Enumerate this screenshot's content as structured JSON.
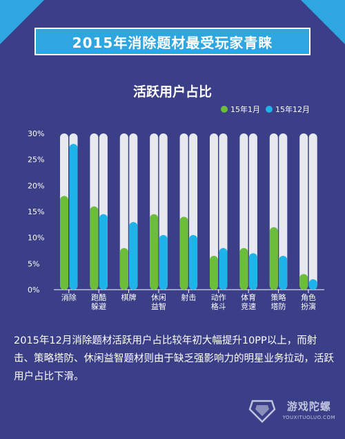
{
  "header": {
    "title": "2015年消除题材最受玩家青睐"
  },
  "chart_data": {
    "type": "bar",
    "title": "活跃用户占比",
    "categories": [
      [
        "消除"
      ],
      [
        "跑酷",
        "躲避"
      ],
      [
        "棋牌"
      ],
      [
        "休闲",
        "益智"
      ],
      [
        "射击"
      ],
      [
        "动作",
        "格斗"
      ],
      [
        "体育",
        "竞速"
      ],
      [
        "策略",
        "塔防"
      ],
      [
        "角色",
        "扮演"
      ]
    ],
    "series": [
      {
        "name": "15年1月",
        "color": "#6cbd3a",
        "values": [
          18,
          16,
          8,
          14.5,
          14,
          6.5,
          8,
          12,
          3
        ]
      },
      {
        "name": "15年12月",
        "color": "#1eb4ea",
        "values": [
          28,
          14.5,
          13,
          10.5,
          10.5,
          8,
          7,
          6.5,
          2
        ]
      }
    ],
    "y_ticks": [
      "0%",
      "5%",
      "10%",
      "15%",
      "20%",
      "25%",
      "30%"
    ],
    "ylim": [
      0,
      30
    ],
    "background_track_color": "#e8e9ee",
    "grid": false,
    "legend_position": "top-right"
  },
  "description": "2015年12月消除题材活跃用户占比较年初大幅提升10PP以上，而射击、策略塔防、休闲益智题材则由于缺乏强影响力的明星业务拉动，活跃用户占比下滑。",
  "logo": {
    "cn": "游戏陀螺",
    "en": "YOUXITUOLUO.COM",
    "icon": "gyroscope-logo-icon"
  }
}
